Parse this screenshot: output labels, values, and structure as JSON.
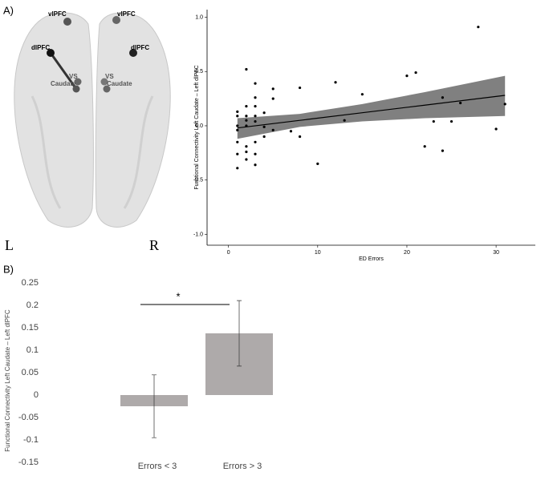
{
  "panel_labels": {
    "a": "A)",
    "b": "B)",
    "left": "L",
    "right": "R"
  },
  "brain": {
    "labels": [
      "vlPFC",
      "vlPFC",
      "dlPFC",
      "dlPFC",
      "VS",
      "Caudate",
      "VS",
      "Caudate"
    ]
  },
  "chart_data": [
    {
      "type": "scatter",
      "xlabel": "ED Errors",
      "ylabel": "Functional Connectivity Left Caudate – Left dlPFC",
      "x": [
        28,
        2,
        3,
        12,
        20,
        21,
        8,
        5,
        15,
        24,
        26,
        31,
        5,
        3,
        1,
        2,
        3,
        4,
        1,
        2,
        3,
        2,
        3,
        2,
        1,
        4,
        5,
        1,
        7,
        4,
        8,
        3,
        1,
        2,
        2,
        1,
        3,
        2,
        3,
        10,
        1,
        13,
        23,
        25,
        30,
        22,
        24
      ],
      "y": [
        0.91,
        0.52,
        0.39,
        0.4,
        0.46,
        0.49,
        0.35,
        0.34,
        0.29,
        0.26,
        0.21,
        0.2,
        0.25,
        0.26,
        0.13,
        0.18,
        0.18,
        0.12,
        0.09,
        0.09,
        0.09,
        0.05,
        0.04,
        0,
        0,
        -0.01,
        -0.04,
        -0.04,
        -0.05,
        -0.1,
        -0.1,
        -0.15,
        -0.15,
        -0.19,
        -0.24,
        -0.26,
        -0.26,
        -0.31,
        -0.36,
        -0.35,
        -0.39,
        0.05,
        0.04,
        0.04,
        -0.03,
        -0.19,
        -0.23
      ],
      "color": "#000000",
      "fit": {
        "x": [
          1,
          8,
          15,
          22,
          31
        ],
        "y": [
          -0.02,
          0.05,
          0.12,
          0.19,
          0.28
        ],
        "lower": [
          -0.12,
          -0.01,
          0.04,
          0.07,
          0.09
        ],
        "upper": [
          0.07,
          0.11,
          0.2,
          0.31,
          0.46
        ],
        "band_color": "#808080"
      },
      "xlim": [
        -2.4,
        34.4
      ],
      "ylim": [
        -1.1,
        1.07
      ],
      "xticks": [
        0,
        10,
        20,
        30
      ],
      "yticks": [
        {
          "value": 1,
          "label": "1.0"
        },
        {
          "value": 0.5,
          "label": "0.5"
        },
        {
          "value": 0,
          "label": "0.0"
        },
        {
          "value": -0.5,
          "label": "-0.5"
        },
        {
          "value": -1,
          "label": "-1.0"
        }
      ]
    },
    {
      "type": "bar",
      "ylabel": "Functional Connectivity Left Caudate – Left dlPFC",
      "categories": [
        "Errors < 3",
        "Errors > 3"
      ],
      "values": [
        -0.025,
        0.1375
      ],
      "errors": [
        0.07,
        0.073
      ],
      "color": "#aeaaaa",
      "annotation": "*",
      "ylim": [
        -0.15,
        0.25
      ],
      "yticks": [
        0.25,
        0.2,
        0.15,
        0.1,
        0.05,
        0,
        -0.05,
        -0.1,
        -0.15
      ]
    }
  ]
}
